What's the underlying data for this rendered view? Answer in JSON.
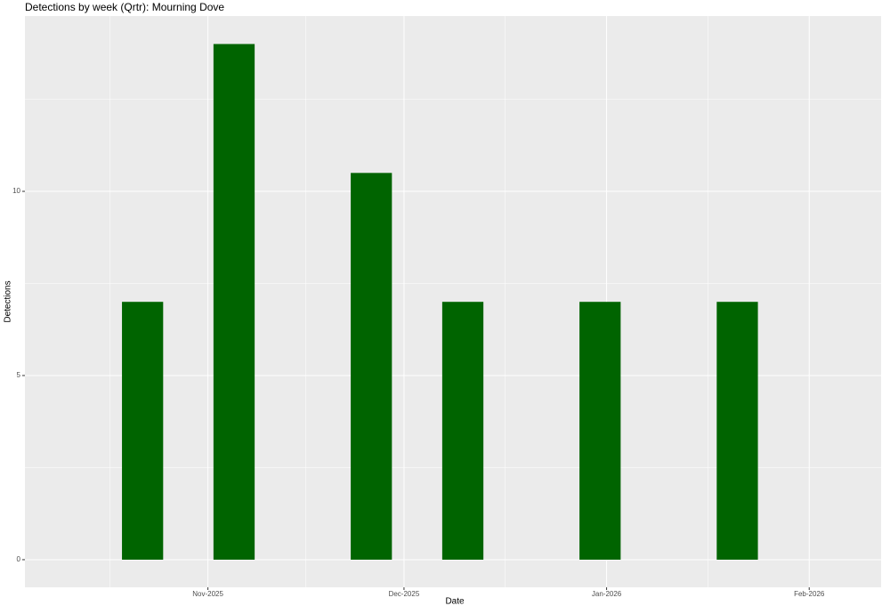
{
  "chart_data": {
    "type": "bar",
    "title": "Detections by week (Qrtr): Mourning Dove",
    "x_label": "Date",
    "y_label": "Detections",
    "x": [
      "2025-10-22",
      "2025-11-05",
      "2025-11-26",
      "2025-12-10",
      "2025-12-31",
      "2026-01-21"
    ],
    "values": [
      7,
      14,
      10.5,
      7,
      7,
      7
    ],
    "color": "#006400",
    "xlim": [
      "2025-10-04",
      "2026-02-12"
    ],
    "xticks": [
      {
        "value": "2025-11-01",
        "label": "Nov-2025"
      },
      {
        "value": "2025-12-01",
        "label": "Dec-2025"
      },
      {
        "value": "2026-01-01",
        "label": "Jan-2026"
      },
      {
        "value": "2026-02-01",
        "label": "Feb-2026"
      }
    ],
    "ylim": [
      -0.75,
      14.76
    ],
    "yticks": [
      0,
      5,
      10
    ],
    "grid": true
  }
}
